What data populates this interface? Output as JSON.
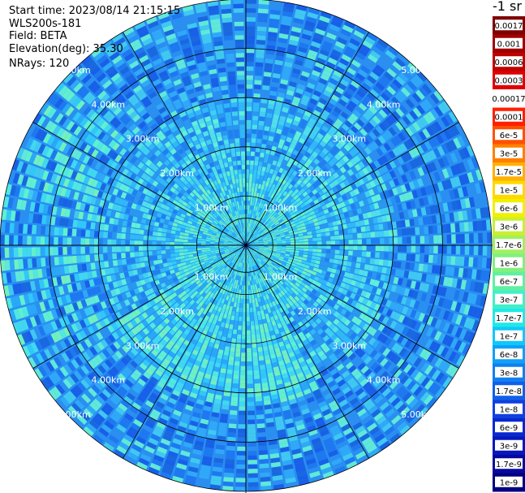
{
  "header": {
    "start_time": "Start time: 2023/08/14 21:15:15",
    "instrument": "WLS200s-181",
    "field": "Field: BETA",
    "elevation": "Elevation(deg): 35.30",
    "nrays": "NRays: 120"
  },
  "colorbar": {
    "unit_label": "-1 sr",
    "ticks": [
      "0.0017",
      "0.001",
      "0.0006",
      "0.0003",
      "0.00017",
      "0.0001",
      "6e-5",
      "3e-5",
      "1.7e-5",
      "1e-5",
      "6e-6",
      "3e-6",
      "1.7e-6",
      "1e-6",
      "6e-7",
      "3e-7",
      "1.7e-7",
      "1e-7",
      "6e-8",
      "3e-8",
      "1.7e-8",
      "1e-8",
      "6e-9",
      "3e-9",
      "1.7e-9",
      "1e-9"
    ],
    "colors": [
      "#800000",
      "#a00000",
      "#c00000",
      "#e00000",
      "#ffffff",
      "#ff2000",
      "#ff5000",
      "#ff8000",
      "#ffb000",
      "#ffd800",
      "#f0f000",
      "#c8f030",
      "#a0f060",
      "#80f080",
      "#60f0a0",
      "#40f0c8",
      "#20e8e8",
      "#10c8f8",
      "#10a0f8",
      "#1080f0",
      "#1060e8",
      "#1040e0",
      "#0828d0",
      "#0818b8",
      "#0808a0",
      "#000080"
    ]
  },
  "chart_data": {
    "type": "heatmap",
    "projection": "polar PPI scan",
    "range_ring_labels": [
      "1.00km",
      "2.00km",
      "3.00km",
      "4.00km",
      "5.00km"
    ],
    "range_rings_km": [
      1,
      2,
      3,
      4,
      5
    ],
    "max_range_km": 5.0,
    "nrays": 120,
    "field": "BETA",
    "elevation_deg": 35.3,
    "scale": "log",
    "value_range": [
      1e-09,
      0.0017
    ],
    "grid": true,
    "dominant_values_by_range": [
      {
        "range_km": [
          0,
          0.5
        ],
        "beta": "1e-7"
      },
      {
        "range_km": [
          0.5,
          1.5
        ],
        "beta": "3e-7"
      },
      {
        "range_km": [
          1.5,
          3.0
        ],
        "beta": "3e-7"
      },
      {
        "range_km": [
          3.0,
          5.0
        ],
        "beta": "6e-8"
      }
    ]
  }
}
